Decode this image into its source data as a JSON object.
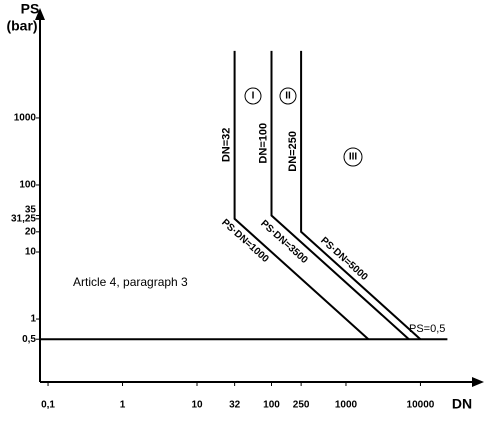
{
  "chart_data": {
    "type": "line",
    "x_label": "DN",
    "y_label": "PS",
    "y_unit": "(bar)",
    "xscale": "log",
    "yscale": "log",
    "xlim": [
      0.078,
      54000
    ],
    "ylim": [
      0.115,
      27000
    ],
    "xticks": [
      {
        "value": 0.1,
        "label": "0,1"
      },
      1,
      10,
      32,
      100,
      250,
      1000,
      10000
    ],
    "yticks": [
      {
        "value": 0.5,
        "label": "0,5"
      },
      1,
      10,
      20,
      {
        "value": 31.25,
        "label": "31,25"
      },
      35,
      100,
      1000
    ],
    "series": [
      {
        "name": "DN=32",
        "color": "#000000",
        "x": [
          32,
          32,
          2000
        ],
        "values": [
          10000,
          31.25,
          0.5
        ]
      },
      {
        "name": "DN=100",
        "color": "#000000",
        "x": [
          100,
          100,
          7000
        ],
        "values": [
          10000,
          35,
          0.5
        ]
      },
      {
        "name": "DN=250",
        "color": "#000000",
        "x": [
          250,
          250,
          10000
        ],
        "values": [
          10000,
          20,
          0.5
        ]
      },
      {
        "name": "PS=0,5",
        "color": "#000000",
        "x": [
          0.078,
          23000
        ],
        "values": [
          0.5,
          0.5
        ]
      }
    ],
    "annotations": [
      "PS·DN=1000",
      "PS·DN=3500",
      "PS·DN=5000",
      "I",
      "II",
      "III",
      "Article 4, paragraph 3"
    ]
  }
}
